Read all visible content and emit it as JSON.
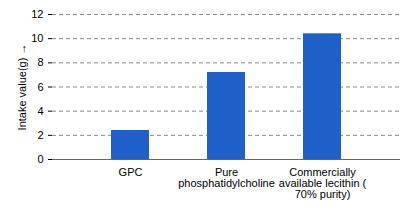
{
  "chart_data": {
    "type": "bar",
    "ylabel": "Intake value(g)",
    "categories": [
      "GPC",
      "Pure phosphatidylcholine",
      "Commercially available lecithin ( 70% purity)"
    ],
    "values": [
      2.4,
      7.2,
      10.4
    ],
    "color": "#1f5fc8",
    "ylim": [
      0,
      12
    ],
    "yticks": [
      0,
      2,
      4,
      6,
      8,
      10,
      12
    ],
    "grid": true
  }
}
